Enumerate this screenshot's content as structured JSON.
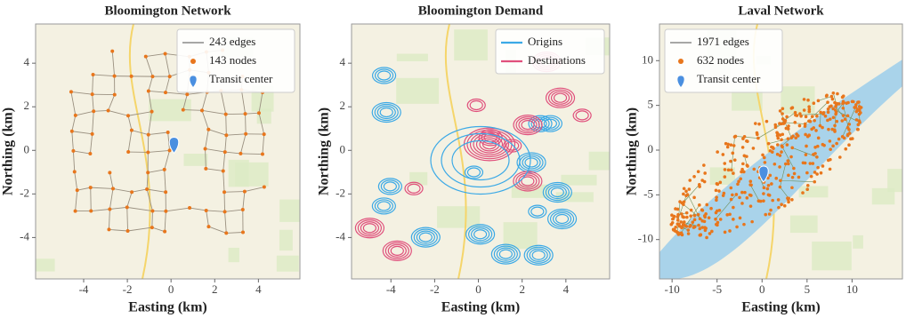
{
  "chart_data": [
    {
      "type": "network",
      "title": "Bloomington Network",
      "xlabel": "Easting (km)",
      "ylabel": "Northing (km)",
      "xlim": [
        -6.2,
        5.9
      ],
      "ylim": [
        -5.9,
        5.8
      ],
      "xticks": [
        -4,
        -2,
        0,
        2,
        4
      ],
      "yticks": [
        -4,
        -2,
        0,
        2,
        4
      ],
      "legend_position": "upper right",
      "legend": [
        {
          "label": "243 edges",
          "color": "#8a8a8a",
          "marker": "line"
        },
        {
          "label": "143 nodes",
          "color": "#e8761c",
          "marker": "dot"
        },
        {
          "label": "Transit center",
          "color": "#4a8fe0",
          "marker": "pin"
        }
      ]
    },
    {
      "type": "density",
      "title": "Bloomington Demand",
      "xlabel": "Easting (km)",
      "ylabel": "Northing (km)",
      "xlim": [
        -5.8,
        6.0
      ],
      "ylim": [
        -5.9,
        5.8
      ],
      "xticks": [
        -4,
        -2,
        0,
        2,
        4
      ],
      "yticks": [
        -4,
        -2,
        0,
        2,
        4
      ],
      "legend_position": "upper right",
      "legend": [
        {
          "label": "Origins",
          "color": "#3ba9e6",
          "marker": "line"
        },
        {
          "label": "Destinations",
          "color": "#e0507c",
          "marker": "line"
        }
      ]
    },
    {
      "type": "network",
      "title": "Laval Network",
      "xlabel": "Easting (km)",
      "ylabel": "Northing (km)",
      "xlim": [
        -11.4,
        15.6
      ],
      "ylim": [
        -14.4,
        14.1
      ],
      "xticks": [
        -10,
        -5,
        0,
        5,
        10
      ],
      "yticks": [
        -10,
        -5,
        0,
        5,
        10
      ],
      "legend_position": "upper left",
      "legend": [
        {
          "label": "1971 edges",
          "color": "#8a8a8a",
          "marker": "line"
        },
        {
          "label": "632 nodes",
          "color": "#e8761c",
          "marker": "dot"
        },
        {
          "label": "Transit center",
          "color": "#4a8fe0",
          "marker": "pin"
        }
      ]
    }
  ]
}
